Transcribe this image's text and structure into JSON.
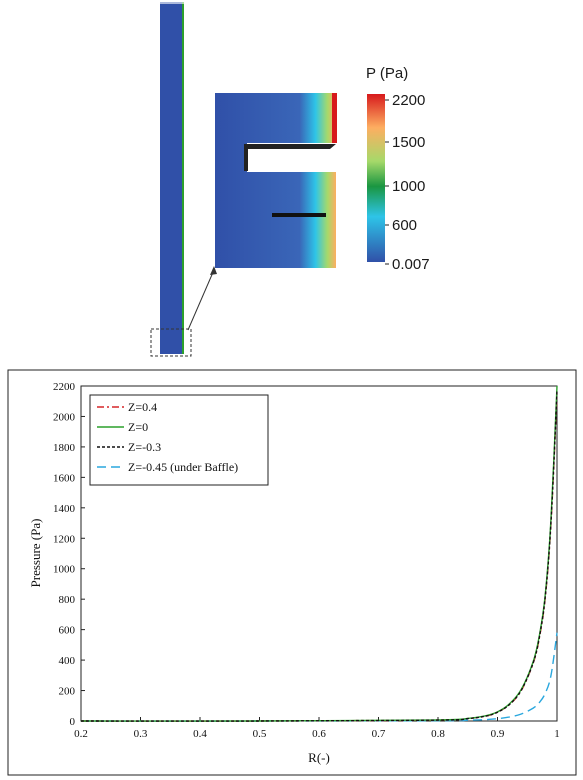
{
  "contour": {
    "colorbar_title": "P (Pa)",
    "colorbar_ticks": [
      "2200",
      "1500",
      "1000",
      "600",
      "0.007"
    ],
    "colors": [
      "#d7191c",
      "#fdae61",
      "#a6d96a",
      "#1a9641",
      "#2ec4e8",
      "#3050a8"
    ]
  },
  "chart_data": {
    "type": "line",
    "xlabel": "R(-)",
    "ylabel": "Pressure (Pa)",
    "xlim": [
      0.2,
      1.0
    ],
    "ylim": [
      0,
      2200
    ],
    "x_ticks": [
      "0.2",
      "0.3",
      "0.4",
      "0.5",
      "0.6",
      "0.7",
      "0.8",
      "0.9",
      "1"
    ],
    "y_ticks": [
      "0",
      "200",
      "400",
      "600",
      "800",
      "1000",
      "1200",
      "1400",
      "1600",
      "1800",
      "2000",
      "2200"
    ],
    "legend_position": "top-left",
    "series": [
      {
        "name": "Z=0.4",
        "color": "#d62728",
        "dash": "dash-dot",
        "x": [
          0.2,
          0.5,
          0.8,
          0.85,
          0.88,
          0.9,
          0.92,
          0.94,
          0.96,
          0.97,
          0.98,
          0.99,
          1.0
        ],
        "y": [
          0,
          0,
          6,
          16,
          32,
          58,
          108,
          200,
          380,
          540,
          800,
          1300,
          2150
        ]
      },
      {
        "name": "Z=0",
        "color": "#2ca02c",
        "dash": "solid",
        "x": [
          0.2,
          0.5,
          0.8,
          0.85,
          0.88,
          0.9,
          0.92,
          0.94,
          0.96,
          0.97,
          0.98,
          0.99,
          1.0
        ],
        "y": [
          0,
          0,
          7,
          17,
          34,
          60,
          112,
          208,
          390,
          555,
          820,
          1330,
          2200
        ]
      },
      {
        "name": "Z=-0.3",
        "color": "#111111",
        "dash": "short-dash",
        "x": [
          0.2,
          0.5,
          0.8,
          0.85,
          0.88,
          0.9,
          0.92,
          0.94,
          0.96,
          0.97,
          0.98,
          0.99,
          1.0
        ],
        "y": [
          0,
          0,
          6,
          16,
          32,
          58,
          108,
          202,
          382,
          545,
          808,
          1310,
          2170
        ]
      },
      {
        "name": "Z=-0.45 (under Baffle)",
        "color": "#2aa7de",
        "dash": "long-dash",
        "x": [
          0.2,
          0.5,
          0.8,
          0.85,
          0.88,
          0.9,
          0.92,
          0.94,
          0.96,
          0.97,
          0.98,
          0.99,
          1.0
        ],
        "y": [
          0,
          0,
          2,
          5,
          9,
          15,
          26,
          46,
          85,
          120,
          180,
          300,
          580
        ]
      }
    ]
  }
}
